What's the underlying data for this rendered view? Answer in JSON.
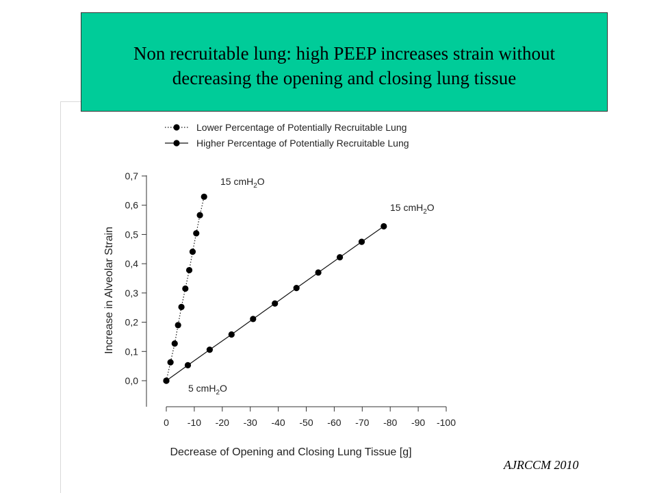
{
  "title": {
    "line1": "Non recruitable lung: high PEEP increases strain without",
    "line2": "decreasing the opening and closing lung tissue"
  },
  "citation": "AJRCCM 2010",
  "chart_data": {
    "type": "line",
    "xlabel": "Decrease of Opening and Closing Lung Tissue [g]",
    "ylabel": "Increase in Alveolar Strain",
    "xlim": [
      0,
      -100
    ],
    "ylim": [
      0,
      0.7
    ],
    "x_ticks": [
      "0",
      "-10",
      "-20",
      "-30",
      "-40",
      "-50",
      "-60",
      "-70",
      "-80",
      "-90",
      "-100"
    ],
    "y_ticks": [
      "0,0",
      "0,1",
      "0,2",
      "0,3",
      "0,4",
      "0,5",
      "0,6",
      "0,7"
    ],
    "grid": false,
    "legend_position": "top-left",
    "series": [
      {
        "name": "Lower Percentage of Potentially Recruitable Lung",
        "line_style": "dotted",
        "marker": "filled-circle",
        "x": [
          0,
          -1.5,
          -3,
          -4.2,
          -5.4,
          -6.8,
          -8.2,
          -9.4,
          -10.7,
          -12,
          -13.5
        ],
        "y": [
          0,
          0.063,
          0.127,
          0.19,
          0.252,
          0.315,
          0.378,
          0.441,
          0.504,
          0.566,
          0.629
        ]
      },
      {
        "name": "Higher Percentage of Potentially Recruitable Lung",
        "line_style": "solid",
        "marker": "filled-circle",
        "x": [
          0,
          -7.7,
          -15.5,
          -23.3,
          -31,
          -38.8,
          -46.5,
          -54.3,
          -62,
          -69.8,
          -77.7
        ],
        "y": [
          0,
          0.053,
          0.106,
          0.158,
          0.211,
          0.264,
          0.317,
          0.37,
          0.422,
          0.475,
          0.528
        ]
      }
    ],
    "annotations": [
      {
        "text": "15 cmH",
        "sub": "2",
        "tail": "O",
        "target": "series0-end"
      },
      {
        "text": "15 cmH",
        "sub": "2",
        "tail": "O",
        "target": "series1-end"
      },
      {
        "text": "5 cmH",
        "sub": "2",
        "tail": "O",
        "target": "origin"
      }
    ]
  }
}
